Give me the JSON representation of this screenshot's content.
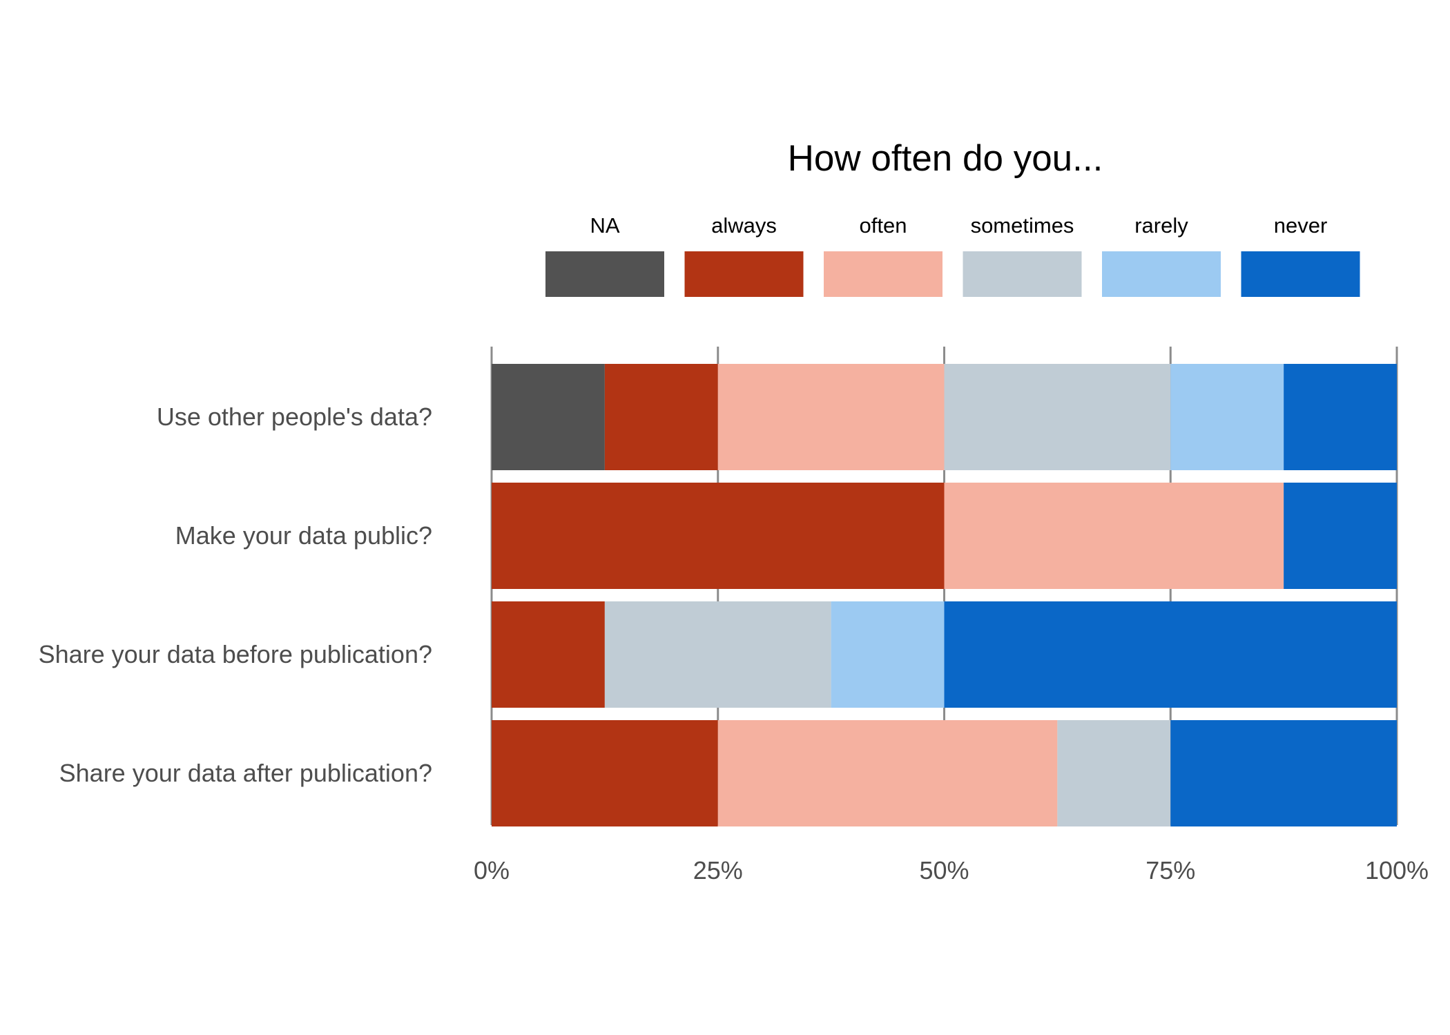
{
  "chart_data": {
    "type": "bar",
    "orientation": "horizontal",
    "stacked": true,
    "title": "How often do you...",
    "categories": [
      "Use other people's data?",
      "Make your data public?",
      "Share your data before publication?",
      "Share your data after publication?"
    ],
    "series": [
      {
        "name": "NA",
        "color": "#525252",
        "values": [
          12.5,
          0,
          0,
          0
        ]
      },
      {
        "name": "always",
        "color": "#b23414",
        "values": [
          12.5,
          50,
          12.5,
          25
        ]
      },
      {
        "name": "often",
        "color": "#f5b1a0",
        "values": [
          25,
          37.5,
          0,
          37.5
        ]
      },
      {
        "name": "sometimes",
        "color": "#c0ccd5",
        "values": [
          25,
          0,
          25,
          12.5
        ]
      },
      {
        "name": "rarely",
        "color": "#9ccaf2",
        "values": [
          12.5,
          0,
          12.5,
          0
        ]
      },
      {
        "name": "never",
        "color": "#0a67c7",
        "values": [
          12.5,
          12.5,
          50,
          25
        ]
      }
    ],
    "xlim": [
      0,
      100
    ],
    "x_ticks": [
      0,
      25,
      50,
      75,
      100
    ],
    "x_tick_labels": [
      "0%",
      "25%",
      "50%",
      "75%",
      "100%"
    ],
    "xlabel": "",
    "ylabel": "",
    "legend": "top",
    "grid": "vertical major lines"
  }
}
